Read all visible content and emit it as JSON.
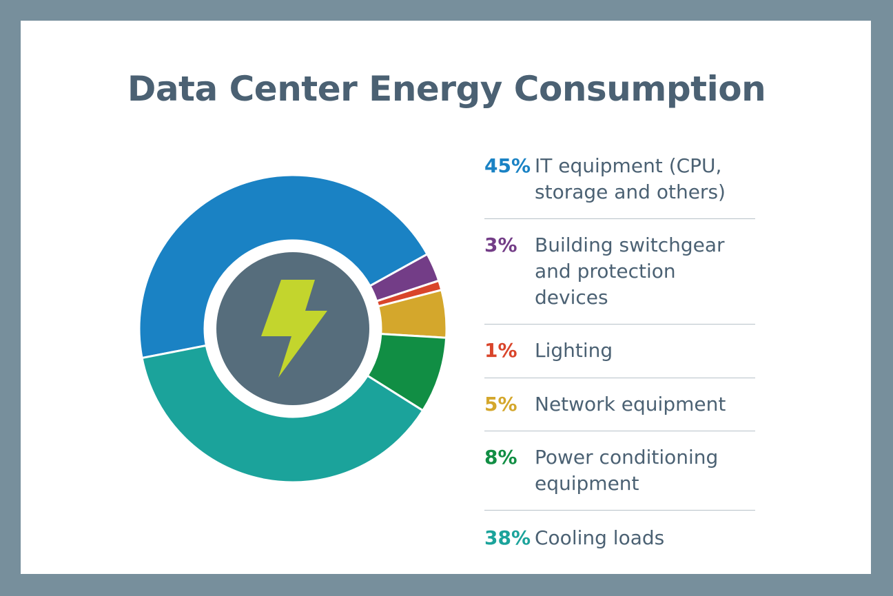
{
  "chart_data": {
    "type": "pie",
    "title": "Data Center Energy Consumption",
    "slices": [
      {
        "pct": "45%",
        "value": 45,
        "label": "IT equipment (CPU, storage and others)",
        "lines": [
          "IT equipment (CPU,",
          "storage and others)"
        ],
        "color": "#1a82c4"
      },
      {
        "pct": "3%",
        "value": 3,
        "label": "Building switchgear and protection devices",
        "lines": [
          "Building switchgear",
          "and protection devices"
        ],
        "color": "#733d87"
      },
      {
        "pct": "1%",
        "value": 1,
        "label": "Lighting",
        "lines": [
          "Lighting"
        ],
        "color": "#d9452b"
      },
      {
        "pct": "5%",
        "value": 5,
        "label": "Network equipment",
        "lines": [
          "Network equipment"
        ],
        "color": "#d4a72c"
      },
      {
        "pct": "8%",
        "value": 8,
        "label": "Power conditioning equipment",
        "lines": [
          "Power conditioning",
          "equipment"
        ],
        "color": "#118e44"
      },
      {
        "pct": "38%",
        "value": 38,
        "label": "Cooling loads",
        "lines": [
          "Cooling loads"
        ],
        "color": "#1ba39b"
      }
    ],
    "legend_position": "right",
    "center_icon": "lightning-bolt-icon"
  }
}
